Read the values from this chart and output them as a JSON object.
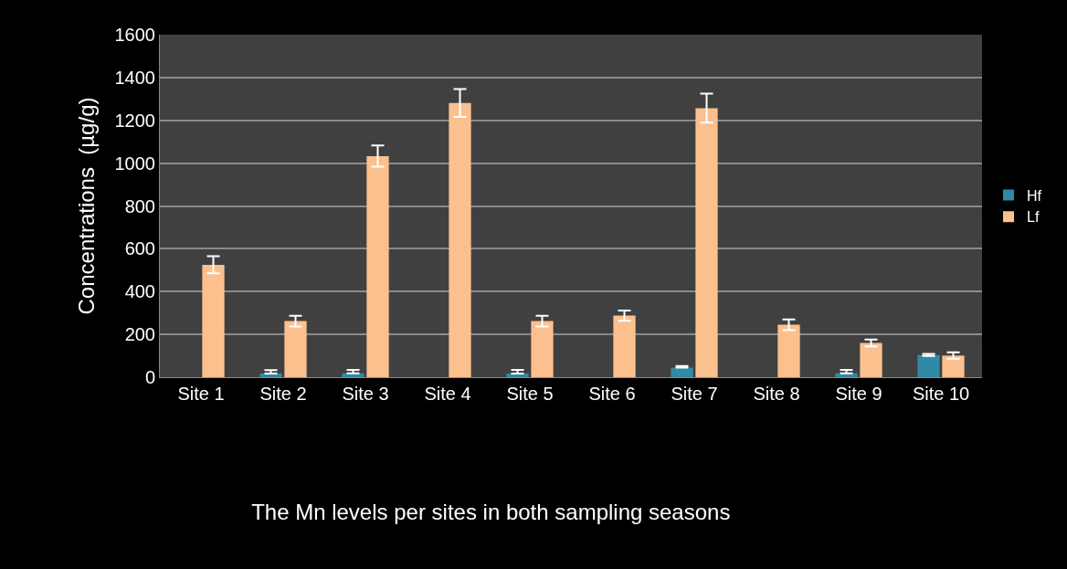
{
  "chart_data": {
    "type": "bar",
    "title": "The Mn levels per sites in both sampling seasons",
    "ylabel": "Concentrations  (µg/g)",
    "categories": [
      "Site 1",
      "Site 2",
      "Site 3",
      "Site 4",
      "Site 5",
      "Site 6",
      "Site 7",
      "Site 8",
      "Site 9",
      "Site 10"
    ],
    "series": [
      {
        "name": "Hf",
        "color": "#2f8aa5",
        "values": [
          null,
          17,
          18,
          null,
          17,
          null,
          45,
          null,
          18,
          104
        ],
        "errors": [
          null,
          [
            17,
            33
          ],
          [
            18,
            34
          ],
          null,
          [
            17,
            34
          ],
          null,
          [
            45,
            52
          ],
          null,
          [
            18,
            34
          ],
          [
            99,
            109
          ]
        ]
      },
      {
        "name": "Lf",
        "color": "#fbc08e",
        "values": [
          525,
          262,
          1033,
          1281,
          262,
          288,
          1257,
          245,
          160,
          101
        ],
        "errors": [
          40,
          25,
          50,
          65,
          25,
          24,
          68,
          25,
          16,
          15
        ]
      }
    ],
    "ylim": [
      0,
      1600
    ],
    "yticks": [
      0,
      200,
      400,
      600,
      800,
      1000,
      1200,
      1400,
      1600
    ],
    "grid": "y",
    "legend": "right"
  }
}
